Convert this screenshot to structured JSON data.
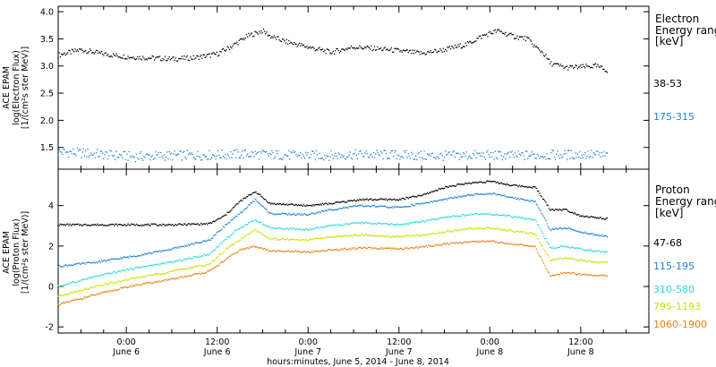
{
  "figure": {
    "xlabel": "hours:minutes, June  5, 2014 - June  8, 2014",
    "x_ticks": [
      {
        "hour": 24,
        "time": "0:00",
        "date": "June 6"
      },
      {
        "hour": 36,
        "time": "12:00",
        "date": "June 6"
      },
      {
        "hour": 48,
        "time": "0:00",
        "date": "June 7"
      },
      {
        "hour": 60,
        "time": "12:00",
        "date": "June 7"
      },
      {
        "hour": 72,
        "time": "0:00",
        "date": "June 8"
      },
      {
        "hour": 84,
        "time": "12:00",
        "date": "June 8"
      }
    ]
  },
  "chart_data": [
    {
      "type": "scatter",
      "title": "",
      "ylabel_lines": [
        "ACE EPAM",
        "log(Electron Flux)",
        "[1/(cm²s ster MeV)]"
      ],
      "ylim": [
        1.1,
        4.1
      ],
      "xlim": [
        15,
        93
      ],
      "y_ticks": [
        "4.0",
        "3.5",
        "3.0",
        "2.5",
        "2.0",
        "1.5"
      ],
      "legend": {
        "title_lines": [
          "Electron",
          "Energy ranges",
          "[keV]"
        ],
        "placement": "right"
      },
      "series": [
        {
          "name": "38-53",
          "color": "#000000",
          "x": [
            15,
            18,
            21,
            24,
            27,
            30,
            33,
            36,
            38,
            40,
            42,
            43,
            45,
            48,
            51,
            54,
            57,
            60,
            63,
            66,
            69,
            71,
            73,
            75,
            77,
            78,
            79,
            80,
            82,
            84,
            86,
            87.5
          ],
          "y": [
            3.2,
            3.3,
            3.22,
            3.17,
            3.15,
            3.13,
            3.15,
            3.22,
            3.37,
            3.55,
            3.65,
            3.55,
            3.45,
            3.35,
            3.25,
            3.35,
            3.32,
            3.28,
            3.23,
            3.3,
            3.4,
            3.55,
            3.65,
            3.55,
            3.5,
            3.35,
            3.25,
            3.05,
            2.97,
            2.98,
            3.0,
            2.92
          ]
        },
        {
          "name": "175-315",
          "color": "#1e82dc",
          "x": [
            15,
            20,
            25,
            30,
            35,
            40,
            45,
            50,
            55,
            60,
            65,
            70,
            75,
            80,
            85,
            87.5
          ],
          "y": [
            1.42,
            1.38,
            1.33,
            1.35,
            1.36,
            1.38,
            1.36,
            1.35,
            1.37,
            1.36,
            1.34,
            1.36,
            1.35,
            1.36,
            1.37,
            1.35
          ]
        }
      ]
    },
    {
      "type": "scatter",
      "title": "",
      "ylabel_lines": [
        "ACE EPAM",
        "log(Proton Flux)",
        "[1/(cm²s ster MeV)]"
      ],
      "ylim": [
        -2.3,
        5.8
      ],
      "xlim": [
        15,
        93
      ],
      "y_ticks": [
        "4",
        "2",
        "0",
        "-2"
      ],
      "legend": {
        "title_lines": [
          "Proton",
          "Energy ranges",
          "[keV]"
        ],
        "placement": "right"
      },
      "series": [
        {
          "name": "47-68",
          "color": "#000000",
          "x": [
            15,
            20,
            25,
            30,
            35,
            37,
            39,
            41,
            43,
            48,
            51,
            55,
            60,
            63,
            66,
            69,
            72,
            75,
            78,
            80,
            82,
            84,
            86,
            87.5
          ],
          "y": [
            3.05,
            3.05,
            3.05,
            3.05,
            3.1,
            3.5,
            4.2,
            4.7,
            4.1,
            4.0,
            4.1,
            4.3,
            4.3,
            4.5,
            4.9,
            5.1,
            5.2,
            5.0,
            4.9,
            3.8,
            3.8,
            3.5,
            3.4,
            3.35
          ]
        },
        {
          "name": "115-195",
          "color": "#1e82dc",
          "x": [
            15,
            20,
            25,
            30,
            35,
            37,
            39,
            41,
            43,
            48,
            51,
            55,
            60,
            63,
            66,
            69,
            72,
            75,
            78,
            80,
            82,
            84,
            86,
            87.5
          ],
          "y": [
            1.0,
            1.2,
            1.5,
            1.85,
            2.3,
            3.0,
            3.6,
            4.3,
            3.6,
            3.55,
            3.8,
            4.0,
            3.9,
            4.1,
            4.3,
            4.5,
            4.6,
            4.4,
            4.2,
            2.8,
            2.9,
            2.7,
            2.55,
            2.5
          ]
        },
        {
          "name": "310-580",
          "color": "#28dcd2",
          "x": [
            15,
            20,
            25,
            30,
            35,
            37,
            39,
            41,
            43,
            48,
            51,
            55,
            60,
            63,
            66,
            69,
            72,
            75,
            78,
            80,
            82,
            84,
            86,
            87.5
          ],
          "y": [
            0.0,
            0.5,
            0.9,
            1.2,
            1.6,
            2.3,
            2.9,
            3.3,
            2.9,
            2.8,
            3.0,
            3.15,
            3.05,
            3.2,
            3.4,
            3.55,
            3.6,
            3.45,
            3.3,
            1.9,
            2.0,
            1.85,
            1.75,
            1.7
          ]
        },
        {
          "name": "795-1193",
          "color": "#c8e600",
          "x": [
            15,
            20,
            25,
            30,
            35,
            37,
            39,
            41,
            43,
            48,
            51,
            55,
            60,
            63,
            66,
            69,
            72,
            75,
            78,
            80,
            82,
            84,
            86,
            87.5
          ],
          "y": [
            -0.5,
            0.0,
            0.4,
            0.75,
            1.1,
            1.8,
            2.3,
            2.8,
            2.35,
            2.3,
            2.45,
            2.55,
            2.45,
            2.55,
            2.7,
            2.85,
            2.9,
            2.75,
            2.6,
            1.3,
            1.4,
            1.3,
            1.2,
            1.2
          ]
        },
        {
          "name": "1060-1900",
          "color": "#e68214",
          "x": [
            15,
            20,
            25,
            30,
            35,
            37,
            39,
            41,
            43,
            48,
            51,
            55,
            60,
            63,
            66,
            69,
            72,
            75,
            78,
            80,
            82,
            84,
            86,
            87.5
          ],
          "y": [
            -0.9,
            -0.4,
            0.05,
            0.35,
            0.75,
            1.3,
            1.8,
            2.0,
            1.75,
            1.7,
            1.8,
            1.9,
            1.85,
            1.95,
            2.1,
            2.2,
            2.25,
            2.1,
            1.95,
            0.5,
            0.7,
            0.6,
            0.55,
            0.55
          ]
        }
      ]
    }
  ]
}
